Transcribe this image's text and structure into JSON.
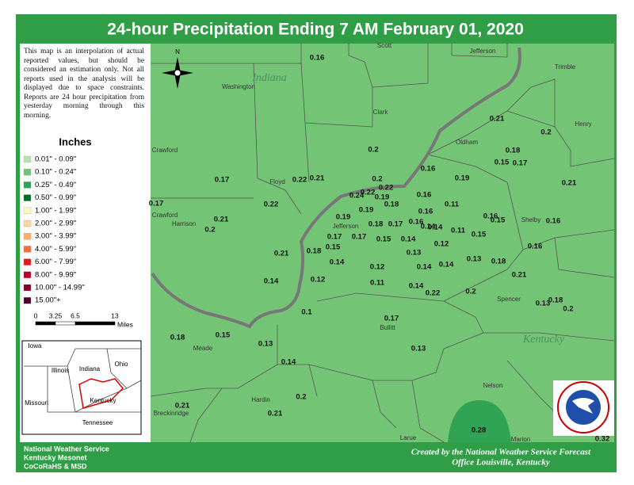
{
  "title": "24-hour Precipitation Ending 7 AM  February 01, 2020",
  "disclaimer": "This map is an interpolation of actual reported values, but should be considered an estimation only. Not all reports used in the analysis will be displayed due to space constraints. Reports are 24 hour precipitation from yesterday morning through this morning.",
  "compass": "N",
  "legend": {
    "title": "Inches",
    "items": [
      {
        "label": "0.01\" - 0.09\"",
        "color": "#b8e2b4"
      },
      {
        "label": "0.10\" - 0.24\"",
        "color": "#74c476"
      },
      {
        "label": "0.25\" - 0.49\"",
        "color": "#31a354"
      },
      {
        "label": "0.50\" - 0.99\"",
        "color": "#006d2c"
      },
      {
        "label": "1.00\" - 1.99\"",
        "color": "#fff7bc"
      },
      {
        "label": "2.00\" - 2.99\"",
        "color": "#fdd49e"
      },
      {
        "label": "3.00\" - 3.99\"",
        "color": "#fdae6b"
      },
      {
        "label": "4.00\" - 5.99\"",
        "color": "#f46d43"
      },
      {
        "label": "6.00\" - 7.99\"",
        "color": "#e31a1c"
      },
      {
        "label": "8.00\" - 9.99\"",
        "color": "#bd0026"
      },
      {
        "label": "10.00\" - 14.99\"",
        "color": "#800026"
      },
      {
        "label": "15.00\"+",
        "color": "#4d0030"
      }
    ]
  },
  "scale": {
    "ticks": [
      "0",
      "3.25",
      "6.5",
      "13"
    ],
    "unit": "Miles"
  },
  "inset": {
    "labels": [
      "Iowa",
      "Illinois",
      "Indiana",
      "Ohio",
      "Missouri",
      "Kentucky",
      "Tennessee"
    ]
  },
  "places": [
    "Scott",
    "Jefferson",
    "Trimble",
    "Indiana",
    "Washington",
    "Clark",
    "Henry",
    "Oldham",
    "Crawford",
    "Floyd",
    "Crawford",
    "Harrison",
    "Jefferson",
    "Shelby",
    "Spencer",
    "Bullitt",
    "Kentucky",
    "Meade",
    "Nelson",
    "Hardin",
    "Breckinridge",
    "Larue",
    "Marion"
  ],
  "stations": [
    "0.16",
    "0.21",
    "0.2",
    "0.2",
    "0.18",
    "0.15",
    "0.17",
    "0.16",
    "0.19",
    "0.21",
    "0.17",
    "0.22",
    "0.21",
    "0.2",
    "0.22",
    "0.24",
    "0.22",
    "0.19",
    "0.16",
    "0.18",
    "0.11",
    "0.22",
    "0.17",
    "0.19",
    "0.19",
    "0.16",
    "0.16",
    "0.15",
    "0.16",
    "0.21",
    "0.2",
    "0.18",
    "0.17",
    "0.16",
    "0.14",
    "0.14",
    "0.11",
    "0.15",
    "0.17",
    "0.17",
    "0.15",
    "0.14",
    "0.15",
    "0.12",
    "0.16",
    "0.21",
    "0.18",
    "0.13",
    "0.14",
    "0.12",
    "0.14",
    "0.14",
    "0.13",
    "0.18",
    "0.21",
    "0.14",
    "0.12",
    "0.11",
    "0.14",
    "0.22",
    "0.2",
    "0.13",
    "0.18",
    "0.2",
    "0.1",
    "0.17",
    "0.18",
    "0.15",
    "0.13",
    "0.13",
    "0.14",
    "0.2",
    "0.21",
    "0.21",
    "0.28",
    "0.32"
  ],
  "footer": {
    "left": [
      "National Weather Service",
      "Kentucky Mesonet",
      "CoCoRaHS & MSD"
    ],
    "right": [
      "Created by the National Weather Service Forecast",
      "Office Louisville, Kentucky"
    ]
  }
}
